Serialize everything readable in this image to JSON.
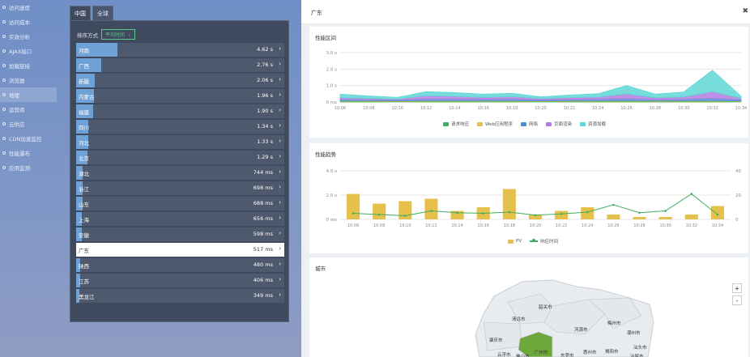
{
  "left_nav": {
    "items": [
      {
        "label": "访问速度"
      },
      {
        "label": "访问成本"
      },
      {
        "label": "实效分析"
      },
      {
        "label": "AJAX接口"
      },
      {
        "label": "加载链接"
      },
      {
        "label": "浏览器"
      },
      {
        "label": "地理"
      },
      {
        "label": "运营商"
      },
      {
        "label": "云供应"
      },
      {
        "label": "CDN加速监控"
      },
      {
        "label": "性能瀑布"
      },
      {
        "label": "应用监测"
      }
    ],
    "active_index": 6
  },
  "region_tabs": [
    {
      "label": "中国"
    },
    {
      "label": "全球"
    }
  ],
  "sort": {
    "label": "排序方式",
    "value": "平均时间"
  },
  "ranking": [
    {
      "name": "河南",
      "value": "4.62 s",
      "fraction": 0.2
    },
    {
      "name": "广西",
      "value": "2.76 s",
      "fraction": 0.12
    },
    {
      "name": "新疆",
      "value": "2.06 s",
      "fraction": 0.09
    },
    {
      "name": "内蒙古",
      "value": "1.96 s",
      "fraction": 0.085
    },
    {
      "name": "福建",
      "value": "1.90 s",
      "fraction": 0.08
    },
    {
      "name": "四川",
      "value": "1.34 s",
      "fraction": 0.06
    },
    {
      "name": "河北",
      "value": "1.33 s",
      "fraction": 0.058
    },
    {
      "name": "北京",
      "value": "1.29 s",
      "fraction": 0.056
    },
    {
      "name": "湖北",
      "value": "744 ms",
      "fraction": 0.032
    },
    {
      "name": "浙江",
      "value": "698 ms",
      "fraction": 0.03
    },
    {
      "name": "山东",
      "value": "688 ms",
      "fraction": 0.03
    },
    {
      "name": "上海",
      "value": "656 ms",
      "fraction": 0.028
    },
    {
      "name": "安徽",
      "value": "598 ms",
      "fraction": 0.026
    },
    {
      "name": "广东",
      "value": "517 ms",
      "fraction": 0.022,
      "selected": true
    },
    {
      "name": "陕西",
      "value": "480 ms",
      "fraction": 0.021
    },
    {
      "name": "江苏",
      "value": "406 ms",
      "fraction": 0.018
    },
    {
      "name": "黑龙江",
      "value": "349 ms",
      "fraction": 0.015
    }
  ],
  "detail": {
    "title": "广东",
    "close_icon": "close-icon"
  },
  "chart_data": [
    {
      "type": "area",
      "title": "性能区间",
      "categories": [
        "10:06",
        "10:08",
        "10:10",
        "10:12",
        "10:14",
        "10:16",
        "10:18",
        "10:20",
        "10:22",
        "10:24",
        "10:26",
        "10:28",
        "10:30",
        "10:32",
        "10:34"
      ],
      "ylim": [
        0,
        3.0
      ],
      "yticks": [
        "0 ms",
        "1.0 s",
        "2.0 s",
        "3.0 s"
      ],
      "series": [
        {
          "name": "请求响应",
          "color": "#3fae5e",
          "values": [
            0.05,
            0.05,
            0.04,
            0.05,
            0.05,
            0.05,
            0.05,
            0.04,
            0.05,
            0.05,
            0.05,
            0.05,
            0.05,
            0.05,
            0.04
          ]
        },
        {
          "name": "Web应用程序",
          "color": "#e5c04a",
          "values": [
            0.03,
            0.03,
            0.03,
            0.03,
            0.03,
            0.03,
            0.03,
            0.03,
            0.03,
            0.03,
            0.03,
            0.03,
            0.03,
            0.03,
            0.03
          ]
        },
        {
          "name": "网络",
          "color": "#4a90d9",
          "values": [
            0.08,
            0.06,
            0.05,
            0.1,
            0.09,
            0.08,
            0.1,
            0.06,
            0.07,
            0.08,
            0.12,
            0.06,
            0.08,
            0.15,
            0.06
          ]
        },
        {
          "name": "页面渲染",
          "color": "#b07ee0",
          "values": [
            0.1,
            0.08,
            0.06,
            0.2,
            0.18,
            0.12,
            0.15,
            0.08,
            0.12,
            0.14,
            0.3,
            0.12,
            0.15,
            0.4,
            0.1
          ]
        },
        {
          "name": "资源加载",
          "color": "#5fd6d6",
          "values": [
            0.22,
            0.15,
            0.1,
            0.25,
            0.22,
            0.2,
            0.2,
            0.1,
            0.15,
            0.2,
            0.5,
            0.22,
            0.3,
            1.3,
            0.12
          ]
        }
      ]
    },
    {
      "type": "bar",
      "title": "性能趋势",
      "categories": [
        "10:06",
        "10:08",
        "10:10",
        "10:12",
        "10:14",
        "10:16",
        "10:18",
        "10:20",
        "10:22",
        "10:24",
        "10:26",
        "10:28",
        "10:30",
        "10:32",
        "10:34"
      ],
      "ylim": [
        0,
        4.0
      ],
      "yticks": [
        "0 ms",
        "2.0 s",
        "4.0 s"
      ],
      "y2lim": [
        0,
        40
      ],
      "y2ticks": [
        "0",
        "20",
        "40"
      ],
      "series": [
        {
          "name": "PV",
          "type": "bar",
          "axis": "right",
          "color": "#e5c04a",
          "values": [
            21,
            13,
            15,
            17,
            7,
            10,
            25,
            4,
            7,
            10,
            4,
            2,
            2,
            4,
            11
          ]
        },
        {
          "name": "响应时间",
          "type": "line",
          "axis": "left",
          "color": "#3fae5e",
          "values": [
            0.5,
            0.4,
            0.3,
            0.7,
            0.55,
            0.5,
            0.6,
            0.35,
            0.45,
            0.6,
            1.2,
            0.55,
            0.7,
            2.1,
            0.4
          ]
        }
      ]
    }
  ],
  "map": {
    "title": "城市",
    "zoom_in": "+",
    "zoom_out": "-",
    "labels": [
      "韶关市",
      "清远市",
      "河源市",
      "梅州市",
      "潮州市",
      "汕头市",
      "肇庆市",
      "揭阳市",
      "广州市",
      "惠州市",
      "汕尾市",
      "佛山市",
      "东莞市",
      "云浮市"
    ],
    "highlight_color": "#6fa83a"
  }
}
